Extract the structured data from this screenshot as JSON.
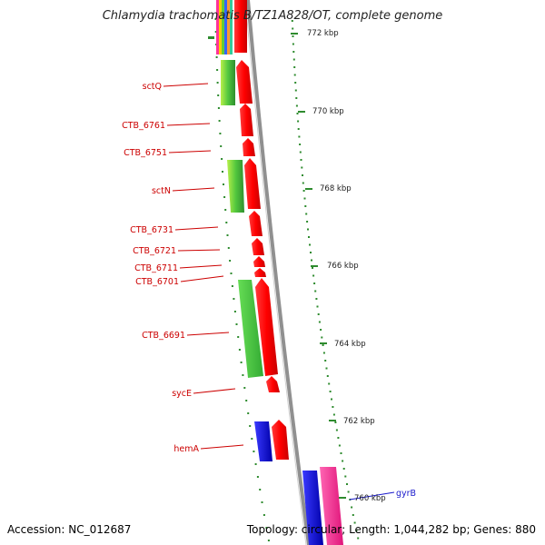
{
  "title": "Chlamydia trachomatis B/TZ1A828/OT, complete genome",
  "footer": {
    "accession": "Accession: NC_012687",
    "summary": "Topology: circular; Length: 1,044,282 bp; Genes: 880"
  },
  "colors": {
    "forward_cds": "#ff0000",
    "reverse_cds": "#3ec23e",
    "blue_feature": "#0000ee",
    "pink_feature": "#ff3399",
    "backbone": "#888888",
    "tick": "#2e8b2e",
    "red_label": "#cc0000",
    "blue_label": "#1a1acc"
  },
  "kbp_ticks": [
    "772 kbp",
    "770 kbp",
    "768 kbp",
    "766 kbp",
    "764 kbp",
    "762 kbp",
    "760 kbp"
  ],
  "gene_labels": [
    {
      "text": "sctQ",
      "color": "red"
    },
    {
      "text": "CTB_6761",
      "color": "red"
    },
    {
      "text": "CTB_6751",
      "color": "red"
    },
    {
      "text": "sctN",
      "color": "red"
    },
    {
      "text": "CTB_6731",
      "color": "red"
    },
    {
      "text": "CTB_6721",
      "color": "red"
    },
    {
      "text": "CTB_6711",
      "color": "red"
    },
    {
      "text": "CTB_6701",
      "color": "red"
    },
    {
      "text": "CTB_6691",
      "color": "red"
    },
    {
      "text": "sycE",
      "color": "red"
    },
    {
      "text": "hemA",
      "color": "red"
    },
    {
      "text": "gyrB",
      "color": "blue"
    }
  ]
}
